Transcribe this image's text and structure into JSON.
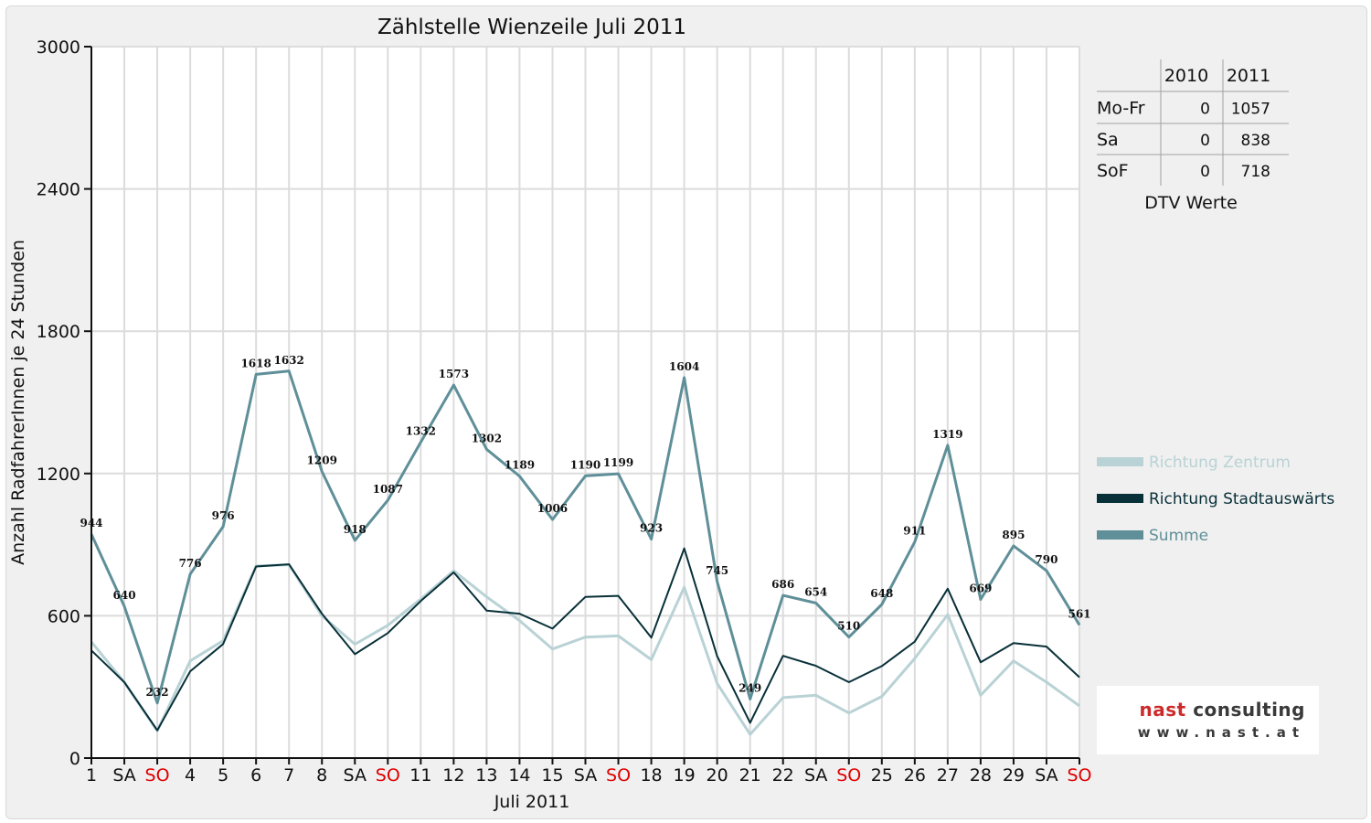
{
  "chart_data": {
    "type": "line",
    "title": "Zählstelle Wienzeile Juli 2011",
    "xlabel": "Juli 2011",
    "ylabel": "Anzahl RadfahrerInnen je 24 Stunden",
    "ylim": [
      0,
      3000
    ],
    "yticks": [
      0,
      600,
      1200,
      1800,
      2400,
      3000
    ],
    "grid": true,
    "legend_position": "right",
    "categories": [
      "1",
      "SA",
      "SO",
      "4",
      "5",
      "6",
      "7",
      "8",
      "SA",
      "SO",
      "11",
      "12",
      "13",
      "14",
      "15",
      "SA",
      "SO",
      "18",
      "19",
      "20",
      "21",
      "22",
      "SA",
      "SO",
      "25",
      "26",
      "27",
      "28",
      "29",
      "SA",
      "SO"
    ],
    "weekend_categories_colored": {
      "SO": "#e00000"
    },
    "series": [
      {
        "name": "Richtung Zentrum",
        "color": "#b9d2d5",
        "values": [
          490,
          320,
          115,
          410,
          495,
          810,
          815,
          600,
          480,
          560,
          670,
          790,
          680,
          580,
          460,
          510,
          515,
          415,
          720,
          315,
          100,
          255,
          265,
          190,
          260,
          420,
          605,
          265,
          410,
          320,
          220
        ]
      },
      {
        "name": "Richtung Stadtauswärts",
        "color": "#083038",
        "values": [
          454,
          320,
          117,
          366,
          481,
          808,
          817,
          609,
          438,
          527,
          662,
          783,
          622,
          609,
          546,
          680,
          684,
          508,
          884,
          430,
          149,
          431,
          389,
          320,
          388,
          491,
          714,
          404,
          485,
          470,
          341
        ]
      },
      {
        "name": "Summe",
        "color": "#5f8f98",
        "values": [
          944,
          640,
          232,
          776,
          976,
          1618,
          1632,
          1209,
          918,
          1087,
          1332,
          1573,
          1302,
          1189,
          1006,
          1190,
          1199,
          923,
          1604,
          745,
          249,
          686,
          654,
          510,
          648,
          911,
          1319,
          669,
          895,
          790,
          561
        ]
      }
    ],
    "data_labels_series": "Summe"
  },
  "dtv_table": {
    "headers": [
      "",
      "2010",
      "2011"
    ],
    "rows": [
      {
        "label": "Mo-Fr",
        "v2010": "0",
        "v2011": "1057"
      },
      {
        "label": "Sa",
        "v2010": "0",
        "v2011": "838"
      },
      {
        "label": "SoF",
        "v2010": "0",
        "v2011": "718"
      }
    ],
    "caption": "DTV Werte"
  },
  "logo": {
    "name_part1": "nast",
    "name_part2": "consulting",
    "url": "www.nast.at"
  }
}
